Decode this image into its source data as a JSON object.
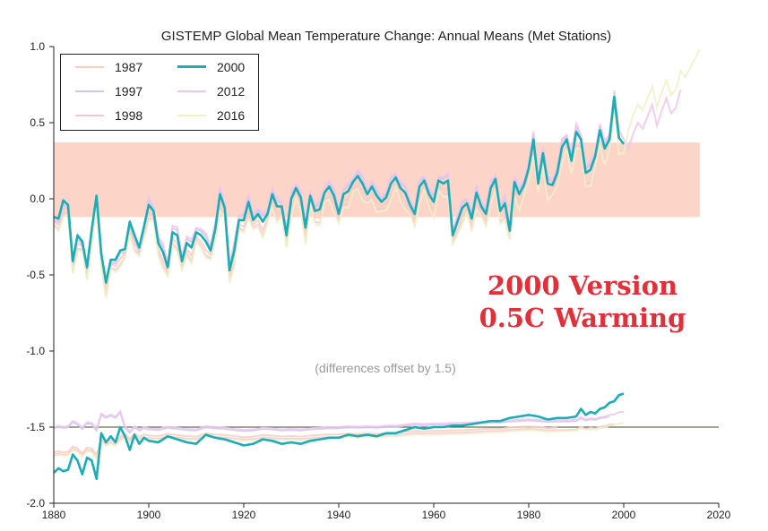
{
  "chart_data": {
    "type": "line",
    "title": "GISTEMP Global Mean Temperature Change: Annual Means (Met Stations)",
    "annotation_main": [
      "2000 Version",
      "0.5C Warming"
    ],
    "annotation_offset": "(differences offset by 1.5)",
    "xlim": [
      1880,
      2020
    ],
    "ylim": [
      -2.0,
      1.0
    ],
    "x_ticks": [
      1880,
      1900,
      1920,
      1940,
      1960,
      1980,
      2000,
      2020
    ],
    "y_ticks": [
      1.0,
      0.5,
      0.0,
      -0.5,
      -1.0,
      -1.5,
      -2.0
    ],
    "x_tick_labels": [
      "1880",
      "1900",
      "1920",
      "1940",
      "1960",
      "1980",
      "2000",
      "2020"
    ],
    "y_tick_labels": [
      "1.0",
      "0.5",
      "0.0",
      "-0.5",
      "-1.0",
      "-1.5",
      "-2.0"
    ],
    "grid": false,
    "legend_position": "top-left",
    "band": {
      "y_low": -0.12,
      "y_high": 0.37,
      "x_start": 1880,
      "x_end": 2016,
      "color": "#fdd5c8"
    },
    "reference_line": {
      "y": -1.5,
      "color": "#3f4a2a"
    },
    "legend": [
      {
        "label": "1987",
        "color": "#f8cdbd"
      },
      {
        "label": "2000",
        "color": "#1aadb6"
      },
      {
        "label": "1997",
        "color": "#c9c8f1"
      },
      {
        "label": "2012",
        "color": "#f1c6ea"
      },
      {
        "label": "1998",
        "color": "#f4c7d4"
      },
      {
        "label": "2016",
        "color": "#f0f1c8"
      }
    ],
    "series": [
      {
        "name": "2000",
        "color": "#1aadb6",
        "x": [
          1880,
          1881,
          1882,
          1883,
          1884,
          1885,
          1886,
          1887,
          1888,
          1889,
          1890,
          1891,
          1892,
          1893,
          1894,
          1895,
          1896,
          1897,
          1898,
          1899,
          1900,
          1901,
          1902,
          1903,
          1904,
          1905,
          1906,
          1907,
          1908,
          1909,
          1910,
          1911,
          1912,
          1913,
          1914,
          1915,
          1916,
          1917,
          1918,
          1919,
          1920,
          1921,
          1922,
          1923,
          1924,
          1925,
          1926,
          1927,
          1928,
          1929,
          1930,
          1931,
          1932,
          1933,
          1934,
          1935,
          1936,
          1937,
          1938,
          1939,
          1940,
          1941,
          1942,
          1943,
          1944,
          1945,
          1946,
          1947,
          1948,
          1949,
          1950,
          1951,
          1952,
          1953,
          1954,
          1955,
          1956,
          1957,
          1958,
          1959,
          1960,
          1961,
          1962,
          1963,
          1964,
          1965,
          1966,
          1967,
          1968,
          1969,
          1970,
          1971,
          1972,
          1973,
          1974,
          1975,
          1976,
          1977,
          1978,
          1979,
          1980,
          1981,
          1982,
          1983,
          1984,
          1985,
          1986,
          1987,
          1988,
          1989,
          1990,
          1991,
          1992,
          1993,
          1994,
          1995,
          1996,
          1997,
          1998,
          1999,
          2000
        ],
        "y": [
          -0.12,
          -0.13,
          -0.01,
          -0.04,
          -0.41,
          -0.24,
          -0.28,
          -0.45,
          -0.2,
          0.02,
          -0.36,
          -0.55,
          -0.4,
          -0.4,
          -0.34,
          -0.33,
          -0.15,
          -0.24,
          -0.32,
          -0.18,
          -0.04,
          -0.08,
          -0.29,
          -0.35,
          -0.45,
          -0.22,
          -0.24,
          -0.41,
          -0.29,
          -0.32,
          -0.22,
          -0.24,
          -0.28,
          -0.34,
          -0.2,
          0.03,
          -0.06,
          -0.47,
          -0.34,
          -0.14,
          -0.14,
          -0.02,
          -0.14,
          -0.1,
          -0.15,
          -0.1,
          0.03,
          -0.05,
          -0.05,
          -0.24,
          0.0,
          0.07,
          0.01,
          -0.19,
          0.02,
          -0.08,
          -0.07,
          0.04,
          0.08,
          0.02,
          -0.1,
          0.03,
          0.05,
          0.11,
          0.15,
          0.1,
          0.03,
          0.08,
          0.02,
          -0.02,
          0.01,
          0.1,
          0.14,
          0.07,
          0.04,
          -0.04,
          -0.1,
          0.08,
          0.12,
          0.03,
          -0.02,
          0.12,
          0.1,
          0.12,
          -0.24,
          -0.15,
          -0.06,
          -0.03,
          -0.13,
          0.04,
          -0.05,
          -0.1,
          0.07,
          0.13,
          -0.08,
          -0.03,
          -0.21,
          0.11,
          0.03,
          0.09,
          0.2,
          0.39,
          0.1,
          0.3,
          0.1,
          0.09,
          0.17,
          0.34,
          0.39,
          0.25,
          0.44,
          0.39,
          0.17,
          0.19,
          0.28,
          0.45,
          0.33,
          0.39,
          0.67,
          0.4,
          0.36
        ]
      },
      {
        "name": "2000 difference (offset by 1.5)",
        "color": "#1aadb6",
        "x": [
          1880,
          1881,
          1882,
          1883,
          1884,
          1885,
          1886,
          1887,
          1888,
          1889,
          1890,
          1891,
          1892,
          1893,
          1894,
          1895,
          1896,
          1897,
          1898,
          1899,
          1900,
          1902,
          1904,
          1906,
          1908,
          1910,
          1912,
          1914,
          1916,
          1918,
          1920,
          1922,
          1924,
          1926,
          1928,
          1930,
          1932,
          1934,
          1936,
          1938,
          1940,
          1942,
          1944,
          1946,
          1948,
          1950,
          1952,
          1954,
          1956,
          1958,
          1960,
          1962,
          1964,
          1966,
          1968,
          1970,
          1972,
          1974,
          1976,
          1978,
          1980,
          1982,
          1984,
          1986,
          1988,
          1990,
          1991,
          1992,
          1993,
          1994,
          1995,
          1996,
          1997,
          1998,
          1999,
          2000
        ],
        "y": [
          -1.8,
          -1.77,
          -1.79,
          -1.78,
          -1.68,
          -1.72,
          -1.81,
          -1.7,
          -1.72,
          -1.84,
          -1.54,
          -1.6,
          -1.56,
          -1.6,
          -1.5,
          -1.56,
          -1.65,
          -1.55,
          -1.61,
          -1.57,
          -1.59,
          -1.6,
          -1.56,
          -1.58,
          -1.6,
          -1.61,
          -1.55,
          -1.57,
          -1.58,
          -1.6,
          -1.62,
          -1.61,
          -1.58,
          -1.59,
          -1.61,
          -1.6,
          -1.61,
          -1.59,
          -1.58,
          -1.57,
          -1.57,
          -1.55,
          -1.56,
          -1.55,
          -1.56,
          -1.54,
          -1.54,
          -1.52,
          -1.5,
          -1.51,
          -1.5,
          -1.5,
          -1.49,
          -1.49,
          -1.48,
          -1.47,
          -1.46,
          -1.46,
          -1.44,
          -1.43,
          -1.42,
          -1.43,
          -1.45,
          -1.44,
          -1.44,
          -1.43,
          -1.38,
          -1.42,
          -1.4,
          -1.41,
          -1.38,
          -1.37,
          -1.34,
          -1.33,
          -1.29,
          -1.28
        ]
      }
    ]
  }
}
